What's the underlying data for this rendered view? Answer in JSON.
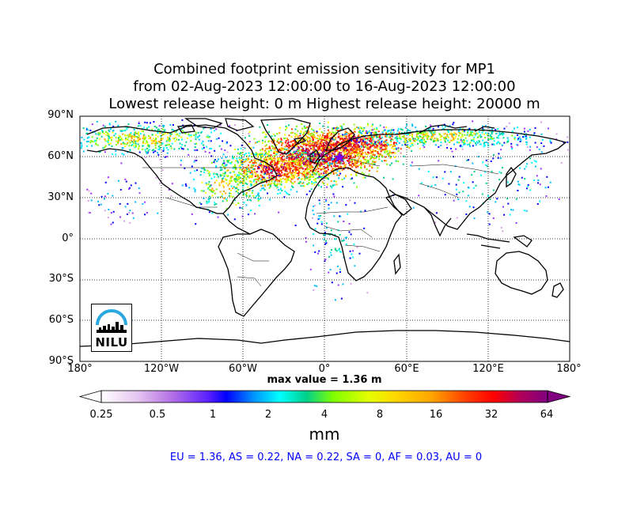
{
  "title": {
    "line1": "Combined footprint emission sensitivity for MP1",
    "line2": "from 02-Aug-2023 12:00:00 to 16-Aug-2023 12:00:00",
    "line3": "Lowest release height: 0 m       Highest release height: 20000 m"
  },
  "map": {
    "lat_labels": [
      "90°N",
      "60°N",
      "30°N",
      "0°",
      "30°S",
      "60°S",
      "90°S"
    ],
    "lon_labels": [
      "180°",
      "120°W",
      "60°W",
      "0°",
      "60°E",
      "120°E",
      "180°"
    ],
    "gridlines": "dotted",
    "max_value_text": "max value = 1.36 m",
    "release_marker": "purple-star",
    "logo_text": "NILU"
  },
  "colorbar": {
    "ticks": [
      "0.25",
      "0.5",
      "1",
      "2",
      "4",
      "8",
      "16",
      "32",
      "64"
    ],
    "unit": "mm",
    "colors": [
      "#ffffff",
      "#d9a0e8",
      "#9b30ff",
      "#0000ff",
      "#00bfff",
      "#00ffff",
      "#00d08a",
      "#7fff00",
      "#ffff00",
      "#ffa500",
      "#ff4500",
      "#ff0000",
      "#b0005a",
      "#800080"
    ]
  },
  "summary": "EU = 1.36,  AS = 0.22,  NA = 0.22,  SA = 0,  AF = 0.03,  AU = 0"
}
